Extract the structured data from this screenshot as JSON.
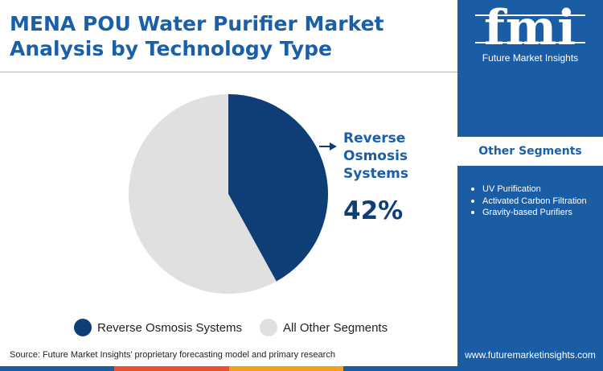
{
  "header": {
    "title_line1": "MENA POU Water Purifier Market",
    "title_line2": "Analysis by Technology Type"
  },
  "chart_data": {
    "type": "pie",
    "title": "MENA POU Water Purifier Market Analysis by Technology Type",
    "start_angle_deg": 0,
    "direction": "clockwise",
    "slices": [
      {
        "label": "Reverse Osmosis Systems",
        "value": 42,
        "color": "#0f3e76"
      },
      {
        "label": "All Other Segments",
        "value": 58,
        "color": "#e0e0e0"
      }
    ],
    "callout": {
      "label": "Reverse Osmosis Systems",
      "value_text": "42%"
    },
    "legend": [
      {
        "label": "Reverse Osmosis Systems",
        "color": "#0f3e76"
      },
      {
        "label": "All Other Segments",
        "color": "#e0e0e0"
      }
    ],
    "legend_position": "bottom"
  },
  "callout": {
    "label_line1": "Reverse",
    "label_line2": "Osmosis",
    "label_line3": "Systems",
    "value": "42%"
  },
  "source": "Source: Future Market Insights’ proprietary forecasting model and primary research",
  "brand": {
    "logo_text": "fmi",
    "company": "Future Market Insights",
    "website": "www.futuremarketinsights.com",
    "panel_color": "#1b5da5"
  },
  "side_panel": {
    "heading": "Other Segments",
    "items": [
      "UV Purification",
      "Activated Carbon Filtration",
      "Gravity-based Purifiers"
    ]
  },
  "colors": {
    "title": "#1a5fa8",
    "accent_dark": "#0f3e76",
    "bar_segments": [
      "#1b5da5",
      "#e8502e",
      "#f4a01c",
      "#1b5da5"
    ]
  }
}
